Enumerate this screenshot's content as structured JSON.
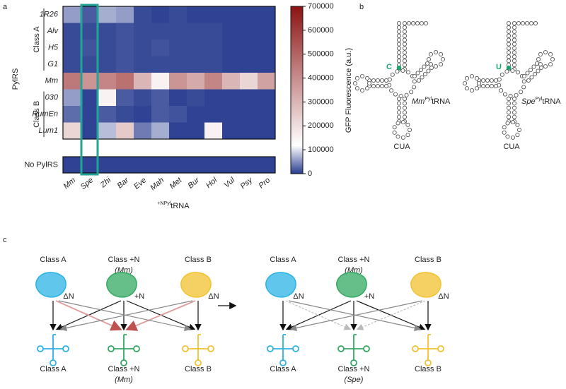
{
  "panel_labels": [
    "a",
    "b",
    "c"
  ],
  "chart_data": {
    "type": "heatmap",
    "y_label": "PylRS",
    "rows": [
      "1R26",
      "Alv",
      "H5",
      "G1",
      "Mm",
      "030",
      "RumEn",
      "Lum1"
    ],
    "row_groups": [
      {
        "label": "Class A",
        "first": "1R26",
        "last": "G1"
      },
      {
        "label": "Class B",
        "first": "030",
        "last": "Lum1"
      }
    ],
    "categories": [
      "Mm",
      "Spe",
      "Zhi",
      "Bar",
      "Eve",
      "Mah",
      "Met",
      "Bur",
      "Hol",
      "Vul",
      "Psy",
      "Pro"
    ],
    "values": [
      [
        60000,
        20000,
        70000,
        60000,
        10000,
        5000,
        10000,
        5000,
        5000,
        5000,
        5000,
        5000
      ],
      [
        10000,
        10000,
        10000,
        15000,
        10000,
        10000,
        10000,
        10000,
        10000,
        5000,
        5000,
        5000
      ],
      [
        10000,
        15000,
        10000,
        15000,
        10000,
        15000,
        10000,
        10000,
        10000,
        5000,
        5000,
        5000
      ],
      [
        10000,
        10000,
        10000,
        15000,
        10000,
        10000,
        10000,
        10000,
        10000,
        5000,
        5000,
        5000
      ],
      [
        450000,
        380000,
        420000,
        470000,
        300000,
        150000,
        380000,
        330000,
        420000,
        300000,
        220000,
        350000
      ],
      [
        60000,
        5000,
        150000,
        20000,
        10000,
        20000,
        5000,
        10000,
        5000,
        5000,
        5000,
        5000
      ],
      [
        30000,
        5000,
        20000,
        10000,
        5000,
        20000,
        15000,
        5000,
        5000,
        5000,
        5000,
        5000
      ],
      [
        220000,
        5000,
        80000,
        250000,
        40000,
        70000,
        5000,
        5000,
        150000,
        5000,
        5000,
        5000
      ]
    ],
    "extra_row": {
      "name": "No PylRS",
      "values": [
        5000,
        5000,
        5000,
        5000,
        5000,
        5000,
        5000,
        5000,
        5000,
        5000,
        5000,
        5000
      ]
    },
    "x_label_sup": "+NPyl",
    "x_label": "tRNA",
    "colorbar_label": "GFP Fluorescence (a.u.)",
    "zlim": [
      0,
      700000
    ],
    "zticks": [
      0,
      100000,
      200000,
      300000,
      400000,
      500000,
      600000,
      700000
    ],
    "colors": [
      "#263a8e",
      "#ffffff",
      "#8c1414"
    ],
    "highlight": {
      "category": "Spe",
      "color": "#21a597"
    }
  },
  "panel_b": {
    "color": "#1aa56e",
    "structures": [
      {
        "nucleotide": "C",
        "name": "Mm",
        "sup": "Pyl",
        "suffix": "tRNA",
        "anticodon": "CUA"
      },
      {
        "nucleotide": "U",
        "name": "Spe",
        "sup": "Pyl",
        "suffix": "tRNA",
        "anticodon": "CUA"
      }
    ]
  },
  "panel_c": {
    "schemes": [
      {
        "top": [
          {
            "label": "Class A",
            "symbol": "ΔN",
            "color": "#2bb3e6"
          },
          {
            "label": "Class +N",
            "species": "(Mm)",
            "symbol": "+N",
            "color": "#33a862"
          },
          {
            "label": "Class B",
            "symbol": "ΔN",
            "color": "#f2c230"
          }
        ],
        "bottom": [
          {
            "label": "Class A"
          },
          {
            "label": "Class +N",
            "species": "(Mm)"
          },
          {
            "label": "Class B"
          }
        ]
      },
      {
        "top": [
          {
            "label": "Class A",
            "symbol": "ΔN",
            "color": "#2bb3e6"
          },
          {
            "label": "Class +N",
            "species": "(Mm)",
            "symbol": "+N",
            "color": "#33a862"
          },
          {
            "label": "Class B",
            "symbol": "ΔN",
            "color": "#f2c230"
          }
        ],
        "bottom": [
          {
            "label": "Class A"
          },
          {
            "label": "Class +N",
            "species": "(Spe)"
          },
          {
            "label": "Class B"
          }
        ]
      }
    ]
  }
}
